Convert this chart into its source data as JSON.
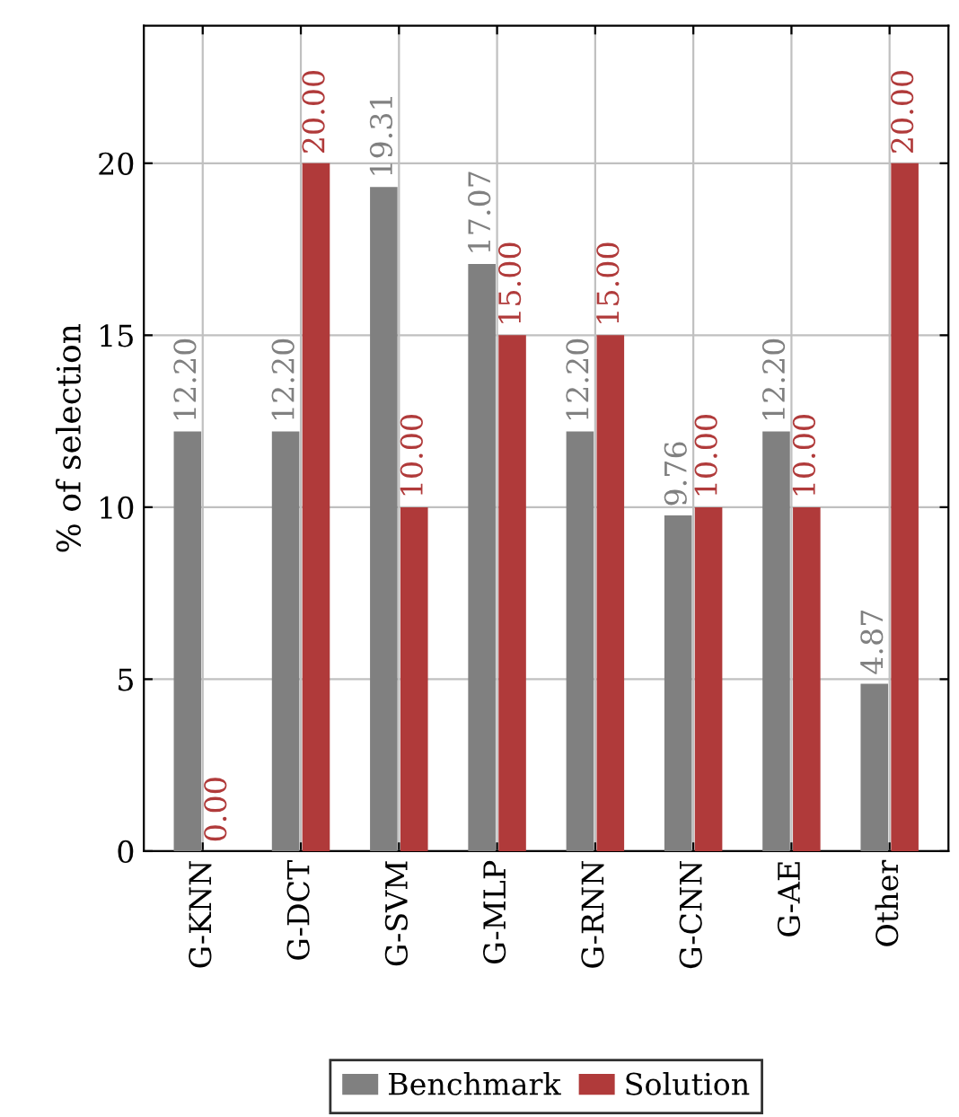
{
  "chart_data": {
    "type": "bar",
    "ylabel": "% of selection",
    "categories": [
      "G-KNN",
      "G-DCT",
      "G-SVM",
      "G-MLP",
      "G-RNN",
      "G-CNN",
      "G-AE",
      "Other"
    ],
    "series": [
      {
        "name": "Benchmark",
        "color": "#808080",
        "values": [
          12.2,
          12.2,
          19.31,
          17.07,
          12.2,
          9.76,
          12.2,
          4.87
        ],
        "value_labels": [
          "12.20",
          "12.20",
          "19.31",
          "17.07",
          "12.20",
          "9.76",
          "12.20",
          "4.87"
        ]
      },
      {
        "name": "Solution",
        "color": "#b03a3a",
        "values": [
          0,
          20,
          10,
          15,
          15,
          10,
          10,
          20
        ],
        "value_labels": [
          "0.00",
          "20.00",
          "10.00",
          "15.00",
          "15.00",
          "10.00",
          "10.00",
          "20.00"
        ]
      }
    ],
    "ylim": [
      0,
      24
    ],
    "yticks": [
      0,
      5,
      10,
      15,
      20
    ],
    "grid": true,
    "legend": "bottom"
  }
}
